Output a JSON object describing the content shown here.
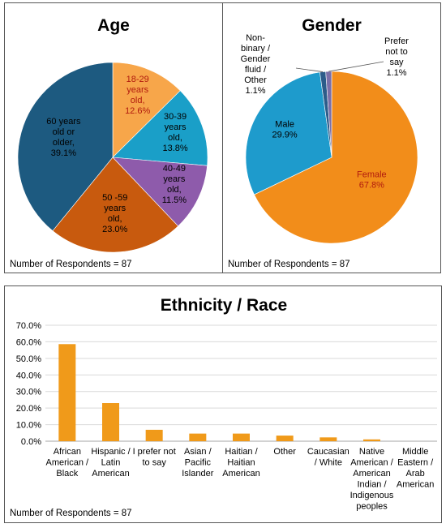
{
  "colors": {
    "age": [
      "#f7a64a",
      "#1a9fc8",
      "#8e5bab",
      "#c85a0e",
      "#1d5a80"
    ],
    "gender": [
      "#f28d1a",
      "#1e9bcc",
      "#2c5c8a",
      "#7a6fa8"
    ],
    "bar": "#f09a1a",
    "grid": "#d9d9d9"
  },
  "age": {
    "title": "Age",
    "respondents": "Number of Respondents = 87",
    "slice_labels": [
      [
        "18-29",
        "years",
        "old,",
        "12.6%"
      ],
      [
        "30-39",
        "years",
        "old,",
        "13.8%"
      ],
      [
        "40-49",
        "years",
        "old,",
        "11.5%"
      ],
      [
        "50 -59",
        "years",
        "old,",
        "23.0%"
      ],
      [
        "60 years",
        "old or",
        "older,",
        "39.1%"
      ]
    ]
  },
  "gender": {
    "title": "Gender",
    "respondents": "Number of Respondents = 87",
    "slice_labels": [
      [
        "Female",
        "67.8%"
      ],
      [
        "Male",
        "29.9%"
      ],
      [
        "Non-",
        "binary /",
        "Gender",
        "fluid /",
        "Other",
        "1.1%"
      ],
      [
        "Prefer",
        "not to",
        "say",
        "1.1%"
      ]
    ]
  },
  "ethnicity": {
    "title": "Ethnicity / Race",
    "respondents": "Number of Respondents = 87",
    "category_lines": [
      [
        "African",
        "American /",
        "Black"
      ],
      [
        "Hispanic /",
        "Latin",
        "American"
      ],
      [
        "I prefer not",
        "to say"
      ],
      [
        "Asian /",
        "Pacific",
        "Islander"
      ],
      [
        "Haitian /",
        "Haitian",
        "American"
      ],
      [
        "Other"
      ],
      [
        "Caucasian",
        "/ White"
      ],
      [
        "Native",
        "American /",
        "American",
        "Indian /",
        "Indigenous",
        "peoples"
      ],
      [
        "Middle",
        "Eastern /",
        "Arab",
        "American"
      ]
    ],
    "y_ticks": [
      "0.0%",
      "10.0%",
      "20.0%",
      "30.0%",
      "40.0%",
      "50.0%",
      "60.0%",
      "70.0%"
    ]
  },
  "chart_data": [
    {
      "type": "pie",
      "title": "Age",
      "categories": [
        "18-29 years old",
        "30-39 years old",
        "40-49 years old",
        "50 -59 years old",
        "60 years old or older"
      ],
      "values": [
        12.6,
        13.8,
        11.5,
        23.0,
        39.1
      ]
    },
    {
      "type": "pie",
      "title": "Gender",
      "categories": [
        "Female",
        "Male",
        "Non-binary / Gender fluid / Other",
        "Prefer not to say"
      ],
      "values": [
        67.8,
        29.9,
        1.1,
        1.1
      ]
    },
    {
      "type": "bar",
      "title": "Ethnicity / Race",
      "categories": [
        "African American / Black",
        "Hispanic / Latin American",
        "I prefer not to say",
        "Asian / Pacific Islander",
        "Haitian / Haitian American",
        "Other",
        "Caucasian / White",
        "Native American / American Indian / Indigenous peoples",
        "Middle Eastern / Arab American"
      ],
      "values": [
        58.6,
        23.0,
        6.9,
        4.6,
        4.6,
        3.4,
        2.3,
        1.1,
        0.0
      ],
      "ylim": [
        0,
        70
      ],
      "grid": true
    }
  ]
}
